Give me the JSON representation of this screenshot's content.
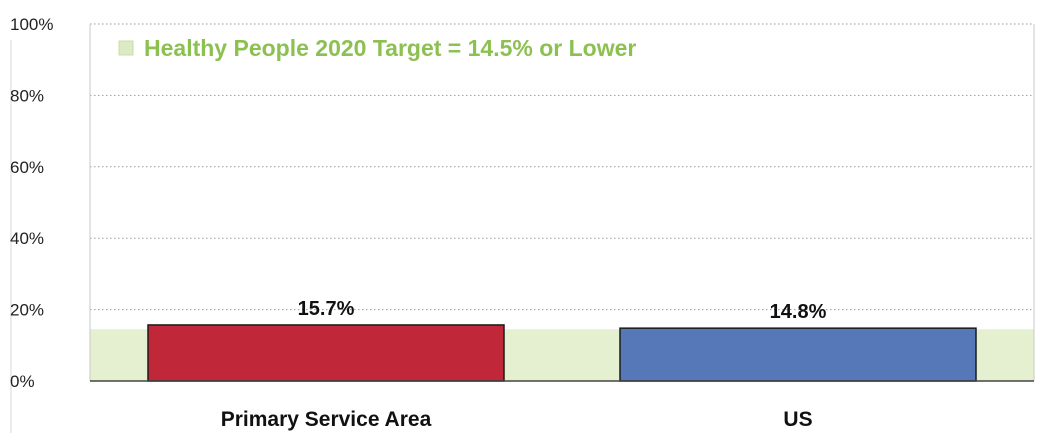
{
  "chart_data": {
    "type": "bar",
    "title": "",
    "xlabel": "",
    "ylabel": "",
    "categories": [
      "Primary Service Area",
      "US"
    ],
    "values": [
      15.7,
      14.8
    ],
    "value_labels": [
      "15.7%",
      "14.8%"
    ],
    "bar_colors": [
      "#c0283a",
      "#5677b8"
    ],
    "ylim": [
      0,
      100
    ],
    "yticks": [
      0,
      20,
      40,
      60,
      80,
      100
    ],
    "ytick_labels": [
      "0%",
      "20%",
      "40%",
      "60%",
      "80%",
      "100%"
    ],
    "grid": true,
    "target": {
      "label": "Healthy People 2020 Target = 14.5% or Lower",
      "value": 14.5,
      "color": "#8cc152",
      "band_color": "#e4f0cf"
    },
    "legend_position": "top-left"
  }
}
